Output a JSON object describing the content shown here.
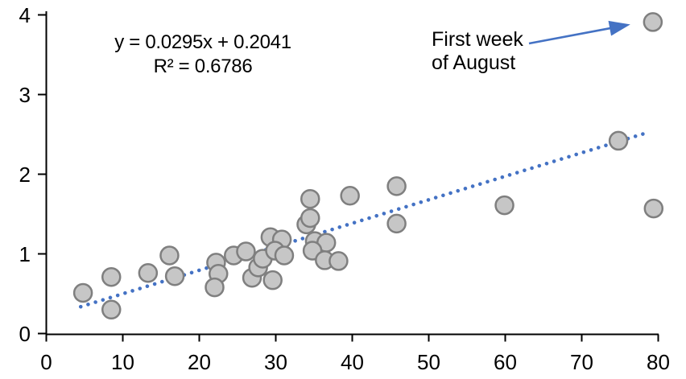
{
  "chart_data": {
    "type": "scatter",
    "title": "",
    "xlabel": "",
    "ylabel": "",
    "xlim": [
      0,
      80
    ],
    "ylim": [
      0,
      4
    ],
    "x_ticks": [
      0,
      10,
      20,
      30,
      40,
      50,
      60,
      70,
      80
    ],
    "x_tick_labels": [
      "0",
      "10",
      "20",
      "30",
      "40",
      "50",
      "60",
      "70",
      "80"
    ],
    "y_ticks": [
      0,
      1,
      2,
      3,
      4
    ],
    "y_tick_labels": [
      "0",
      "1",
      "2",
      "3",
      "4"
    ],
    "grid": false,
    "legend": "none",
    "points": [
      [
        4.8,
        0.51
      ],
      [
        8.5,
        0.71
      ],
      [
        8.5,
        0.3
      ],
      [
        13.3,
        0.76
      ],
      [
        16.1,
        0.98
      ],
      [
        16.8,
        0.72
      ],
      [
        22.2,
        0.89
      ],
      [
        22.5,
        0.75
      ],
      [
        22.0,
        0.58
      ],
      [
        24.5,
        0.98
      ],
      [
        26.1,
        1.03
      ],
      [
        26.9,
        0.7
      ],
      [
        27.7,
        0.83
      ],
      [
        28.3,
        0.94
      ],
      [
        29.3,
        1.21
      ],
      [
        30.8,
        1.18
      ],
      [
        29.9,
        1.04
      ],
      [
        31.1,
        0.98
      ],
      [
        29.6,
        0.67
      ],
      [
        34.0,
        1.37
      ],
      [
        34.5,
        1.69
      ],
      [
        34.5,
        1.45
      ],
      [
        35.1,
        1.16
      ],
      [
        36.6,
        1.14
      ],
      [
        34.8,
        1.04
      ],
      [
        36.4,
        0.92
      ],
      [
        38.2,
        0.91
      ],
      [
        39.7,
        1.73
      ],
      [
        45.8,
        1.85
      ],
      [
        45.8,
        1.38
      ],
      [
        59.9,
        1.61
      ],
      [
        74.8,
        2.42
      ],
      [
        79.3,
        3.91
      ],
      [
        79.4,
        1.57
      ]
    ],
    "trendline": {
      "style": "dotted",
      "slope": 0.0295,
      "intercept": 0.2041,
      "x_start": 4.5,
      "x_end": 78.8,
      "equation_label": "y = 0.0295x + 0.2041",
      "r_squared_label": "R² = 0.6786"
    },
    "annotation": {
      "lines": [
        "First week",
        "of August"
      ],
      "target_point": [
        79.3,
        3.91
      ]
    }
  },
  "colors": {
    "point_fill": "#C6C6C6",
    "point_stroke": "#7F7F7F",
    "trendline": "#4472C4",
    "arrow": "#4472C4",
    "axis": "#000000",
    "text": "#000000"
  }
}
